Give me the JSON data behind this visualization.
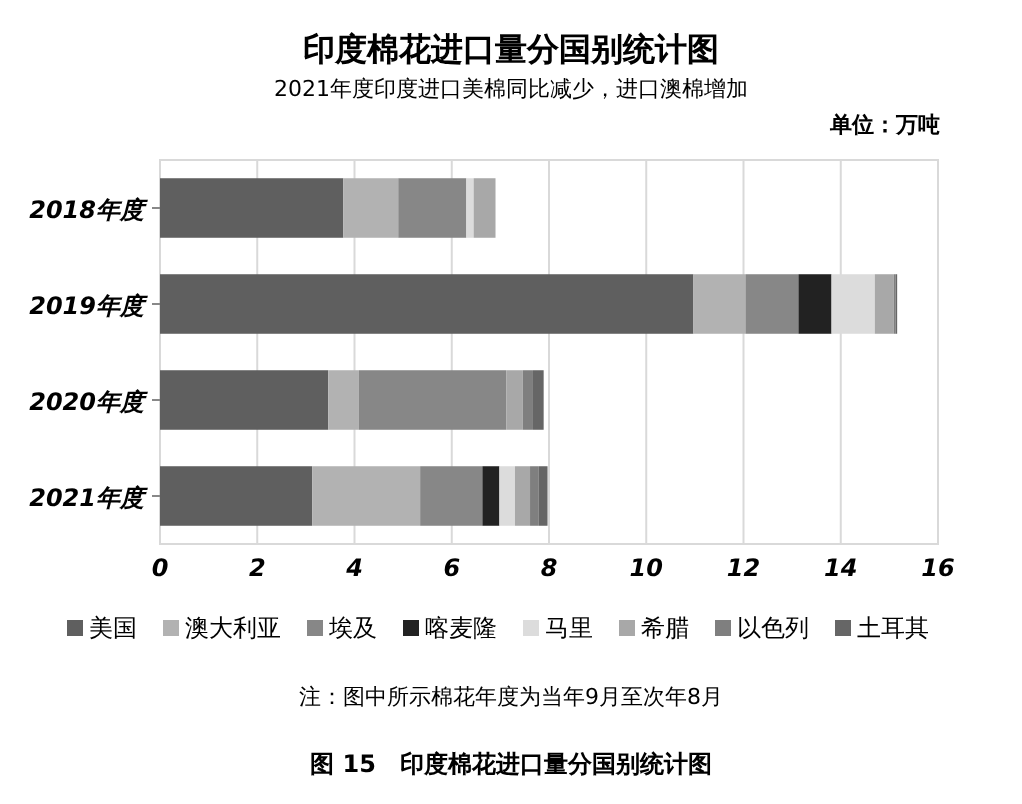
{
  "chart_data": {
    "type": "bar",
    "orientation": "horizontal",
    "stacked": true,
    "title": "印度棉花进口量分国别统计图",
    "subtitle": "2021年度印度进口美棉同比减少，进口澳棉增加",
    "annotations": [
      "单位：万吨",
      "注：图中所示棉花年度为当年9月至次年8月",
      "图 15　印度棉花进口量分国别统计图"
    ],
    "categories": [
      "2018年度",
      "2019年度",
      "2020年度",
      "2021年度"
    ],
    "series": [
      {
        "name": "美国",
        "color": "#5f5f5f",
        "values": [
          3.77,
          10.97,
          3.46,
          3.13
        ]
      },
      {
        "name": "澳大利亚",
        "color": "#b2b2b2",
        "values": [
          1.13,
          1.07,
          0.63,
          2.22
        ]
      },
      {
        "name": "埃及",
        "color": "#878787",
        "values": [
          1.4,
          1.09,
          3.03,
          1.28
        ]
      },
      {
        "name": "喀麦隆",
        "color": "#222222",
        "values": [
          0,
          0.68,
          0,
          0.35
        ]
      },
      {
        "name": "马里",
        "color": "#dcdcdc",
        "values": [
          0.15,
          0.89,
          0,
          0.32
        ]
      },
      {
        "name": "希腊",
        "color": "#a8a8a8",
        "values": [
          0.45,
          0.39,
          0.34,
          0.31
        ]
      },
      {
        "name": "以色列",
        "color": "#7f7f7f",
        "values": [
          0,
          0.04,
          0.21,
          0.18
        ]
      },
      {
        "name": "土耳其",
        "color": "#666666",
        "values": [
          0,
          0.03,
          0.22,
          0.18
        ]
      }
    ],
    "xlim": [
      0,
      16
    ],
    "xticks": [
      0,
      2,
      4,
      6,
      8,
      10,
      12,
      14,
      16
    ],
    "grid": "x",
    "legend": "bottom"
  }
}
